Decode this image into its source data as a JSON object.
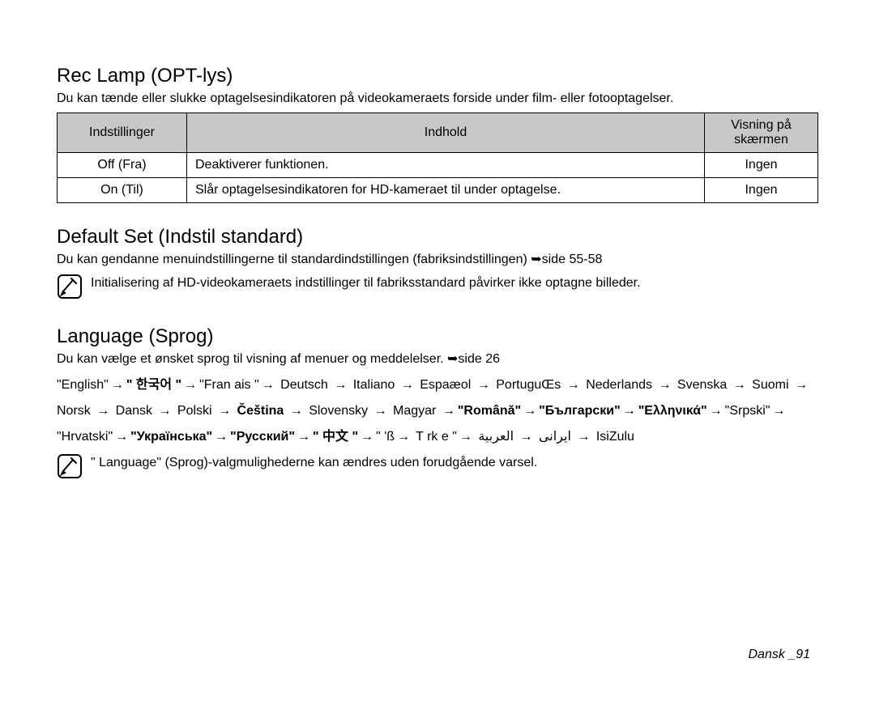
{
  "recLamp": {
    "title": "Rec Lamp (OPT-lys)",
    "sub": "Du kan tænde eller slukke optagelsesindikatoren på videokameraets forside under film- eller fotooptagelser.",
    "headers": {
      "settings": "Indstillinger",
      "contents": "Indhold",
      "display": "Visning på skærmen"
    },
    "rows": [
      {
        "setting": "Off (Fra)",
        "content": "Deaktiverer funktionen.",
        "display": "Ingen"
      },
      {
        "setting": "On (Til)",
        "content": "Slår optagelsesindikatoren for HD-kameraet til under optagelse.",
        "display": "Ingen"
      }
    ]
  },
  "defaultSet": {
    "title": "Default Set (Indstil standard)",
    "sub": "Du kan gendanne menuindstillingerne til standardindstillingen (fabriksindstillingen) ➥side 55-58",
    "note": "Initialisering af HD-videokameraets indstillinger til fabriksstandard påvirker ikke optagne billeder."
  },
  "language": {
    "title": "Language (Sprog)",
    "sub": "Du kan vælge et ønsket sprog til visning af menuer og meddelelser. ➥side 26",
    "items": [
      {
        "t": "\"English\"",
        "b": false
      },
      {
        "t": "\" 한국어 \"",
        "b": true
      },
      {
        "t": "\"Fran ais \"",
        "b": false
      },
      {
        "t": " Deutsch ",
        "b": false
      },
      {
        "t": " Italiano ",
        "b": false
      },
      {
        "t": " Espaæol ",
        "b": false
      },
      {
        "t": " PortuguŒs ",
        "b": false
      },
      {
        "t": " Nederlands ",
        "b": false
      },
      {
        "t": " Svenska ",
        "b": false
      },
      {
        "t": " Suomi ",
        "b": false
      },
      {
        "t": " Norsk ",
        "b": false
      },
      {
        "t": " Dansk ",
        "b": false
      },
      {
        "t": " Polski ",
        "b": false
      },
      {
        "t": " Čeština ",
        "b": true
      },
      {
        "t": " Slovensky ",
        "b": false
      },
      {
        "t": " Magyar ",
        "b": false
      },
      {
        "t": "\"Română\"",
        "b": true
      },
      {
        "t": "\"Български\"",
        "b": true
      },
      {
        "t": "\"Ελληνικά\"",
        "b": true
      },
      {
        "t": "\"Srpski\"",
        "b": false
      },
      {
        "t": "\"Hrvatski\"",
        "b": false
      },
      {
        "t": "\"Українська\"",
        "b": true
      },
      {
        "t": "\"Русский\"",
        "b": true
      },
      {
        "t": "\" 中文 \"",
        "b": true
      },
      {
        "t": "\"  'ß",
        "b": false
      },
      {
        "t": " T rk e  \"",
        "b": false
      },
      {
        "t": " ایرانی ",
        "b": false
      },
      {
        "t": " العربية ",
        "b": false
      },
      {
        "t": " IsiZulu",
        "b": false
      }
    ],
    "arrow": "→",
    "note": "\" Language\"  (Sprog)-valgmulighederne kan ændres uden forudgående varsel."
  },
  "footer": {
    "pageLabel": "Dansk _91"
  },
  "style": {
    "header_bg": "#c8c8c8",
    "body_fontsize": 16,
    "title_fontsize": 24
  }
}
